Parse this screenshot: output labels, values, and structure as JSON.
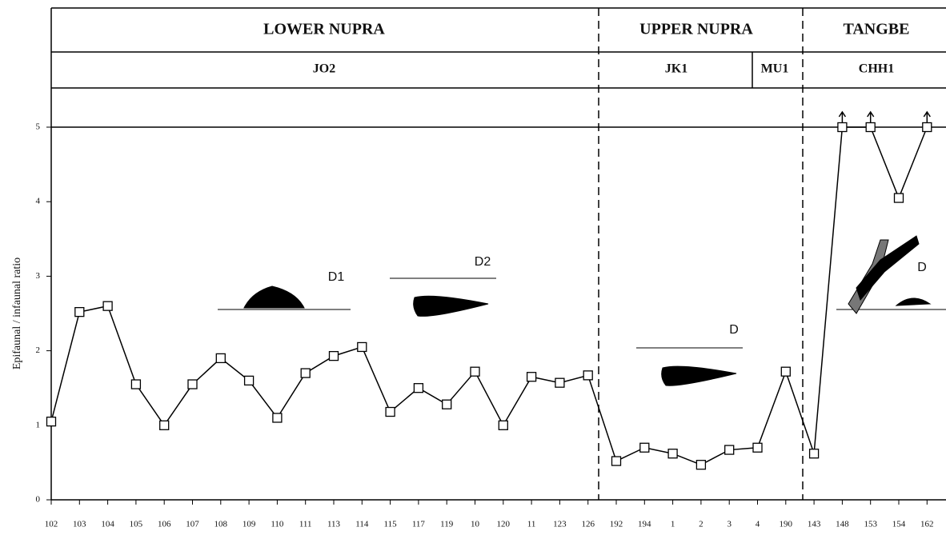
{
  "chart_data": {
    "type": "line",
    "header_rows": [
      [
        "LOWER NUPRA",
        "UPPER NUPRA",
        "TANGBE"
      ],
      [
        "JO2",
        "JK1",
        "MU1",
        "CHH1"
      ]
    ],
    "y_label": "Epifaunal / infaunal ratio",
    "categories": [
      "102",
      "103",
      "104",
      "105",
      "106",
      "107",
      "108",
      "109",
      "110",
      "111",
      "113",
      "114",
      "115",
      "117",
      "119",
      "10",
      "120",
      "11",
      "123",
      "126",
      "192",
      "194",
      "1",
      "2",
      "3",
      "4",
      "190",
      "143",
      "148",
      "153",
      "154",
      "162"
    ],
    "values": [
      1.05,
      2.52,
      2.6,
      1.55,
      1.0,
      1.55,
      1.9,
      1.6,
      1.1,
      1.7,
      1.93,
      2.05,
      1.18,
      1.5,
      1.28,
      1.72,
      1.0,
      1.65,
      1.57,
      1.67,
      0.52,
      0.7,
      0.62,
      0.47,
      0.67,
      0.7,
      1.72,
      0.62,
      5,
      5,
      4.05,
      5
    ],
    "color": "#000000",
    "ylim": [
      0,
      5
    ],
    "yticks": [
      0,
      1,
      2,
      3,
      4,
      5
    ],
    "annotations": [
      "D1",
      "D2",
      "D",
      "D"
    ]
  }
}
